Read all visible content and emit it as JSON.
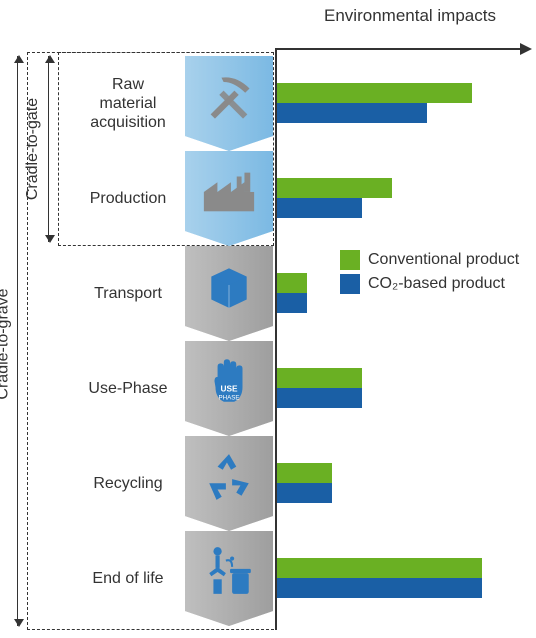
{
  "axis_title": "Environmental impacts",
  "brackets": {
    "gate": {
      "label": "Cradle-to-gate"
    },
    "grave": {
      "label": "Cradle-to-grave"
    }
  },
  "colors": {
    "conventional": "#6ab023",
    "co2": "#1a5fa5",
    "stage_blue_light": "#a8d1ec",
    "stage_blue_dark": "#7bb9e3",
    "stage_grey_light": "#bfbfbf",
    "stage_grey_dark": "#9e9e9e",
    "icon_blue": "#2d7bc1",
    "icon_grey": "#8a8a8a",
    "axis": "#333333",
    "background": "#ffffff"
  },
  "legend": {
    "conventional": "Conventional product",
    "co2": "CO₂-based product"
  },
  "bar_max": 230,
  "stages": [
    {
      "id": "raw",
      "label": "Raw material acquisition",
      "tile": "blue",
      "icon": "pickaxe",
      "conv": 195,
      "co2": 150
    },
    {
      "id": "prod",
      "label": "Production",
      "tile": "blue",
      "icon": "factory",
      "conv": 115,
      "co2": 85
    },
    {
      "id": "transport",
      "label": "Transport",
      "tile": "grey",
      "icon": "box",
      "conv": 30,
      "co2": 30
    },
    {
      "id": "use",
      "label": "Use-Phase",
      "tile": "grey",
      "icon": "hand",
      "conv": 85,
      "co2": 85
    },
    {
      "id": "recycle",
      "label": "Recycling",
      "tile": "grey",
      "icon": "recycle",
      "conv": 55,
      "co2": 55
    },
    {
      "id": "eol",
      "label": "End of life",
      "tile": "grey",
      "icon": "trash",
      "conv": 205,
      "co2": 205
    }
  ]
}
